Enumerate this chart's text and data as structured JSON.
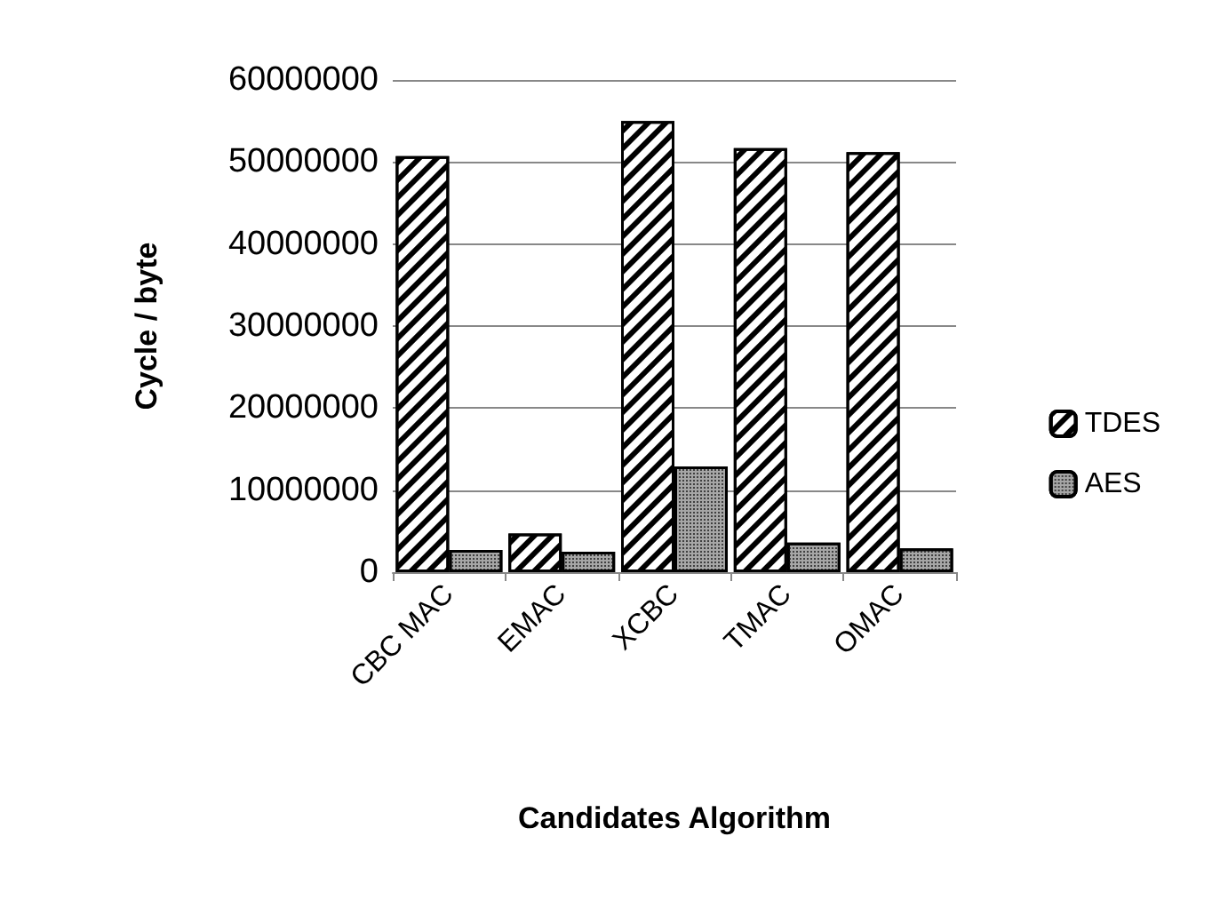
{
  "chart_data": {
    "type": "bar",
    "xlabel": "Candidates Algorithm",
    "ylabel": "Cycle / byte",
    "categories": [
      "CBC MAC",
      "EMAC",
      "XCBC",
      "TMAC",
      "OMAC"
    ],
    "series": [
      {
        "name": "TDES",
        "color": "#000000",
        "values": [
          50700000,
          4700000,
          55000000,
          51700000,
          51200000
        ]
      },
      {
        "name": "AES",
        "color": "#a6a6a6",
        "values": [
          2700000,
          2500000,
          12900000,
          3600000,
          2900000
        ]
      }
    ],
    "ylim": [
      0,
      60000000
    ],
    "yticks": [
      0,
      10000000,
      20000000,
      30000000,
      40000000,
      50000000,
      60000000
    ],
    "grid": "y",
    "legend": "right"
  }
}
